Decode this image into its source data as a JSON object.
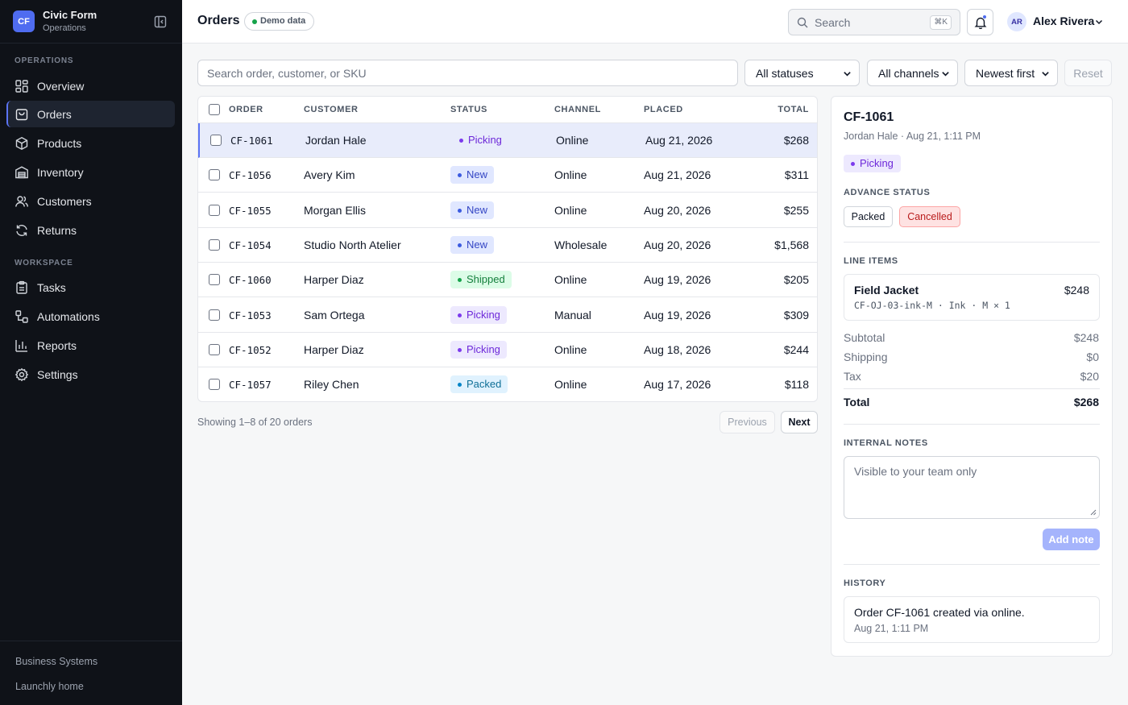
{
  "brand": {
    "logo": "CF",
    "name": "Civic Form",
    "subtitle": "Operations"
  },
  "sidebar": {
    "operations_label": "OPERATIONS",
    "operations": [
      {
        "label": "Overview",
        "icon": "grid-icon"
      },
      {
        "label": "Orders",
        "icon": "shopping-bag-icon",
        "active": true
      },
      {
        "label": "Products",
        "icon": "box-icon"
      },
      {
        "label": "Inventory",
        "icon": "warehouse-icon"
      },
      {
        "label": "Customers",
        "icon": "users-icon"
      },
      {
        "label": "Returns",
        "icon": "refresh-icon"
      }
    ],
    "workspace_label": "WORKSPACE",
    "workspace": [
      {
        "label": "Tasks",
        "icon": "clipboard-icon"
      },
      {
        "label": "Automations",
        "icon": "workflow-icon"
      },
      {
        "label": "Reports",
        "icon": "bar-chart-icon"
      },
      {
        "label": "Settings",
        "icon": "gear-icon"
      }
    ],
    "footer": [
      "Business Systems",
      "Launchly home"
    ]
  },
  "topbar": {
    "title": "Orders",
    "badge": "Demo data",
    "search_placeholder": "Search",
    "search_shortcut": "⌘K",
    "user_initials": "AR",
    "user_name": "Alex Rivera"
  },
  "filters": {
    "search_placeholder": "Search order, customer, or SKU",
    "status": "All statuses",
    "channel": "All channels",
    "sort": "Newest first",
    "reset": "Reset"
  },
  "table": {
    "columns": [
      "ORDER",
      "CUSTOMER",
      "STATUS",
      "CHANNEL",
      "PLACED",
      "TOTAL"
    ],
    "rows": [
      {
        "id": "CF-1061",
        "customer": "Jordan Hale",
        "status": "Picking",
        "channel": "Online",
        "placed": "Aug 21, 2026",
        "total": "$268",
        "selected": true
      },
      {
        "id": "CF-1056",
        "customer": "Avery Kim",
        "status": "New",
        "channel": "Online",
        "placed": "Aug 21, 2026",
        "total": "$311"
      },
      {
        "id": "CF-1055",
        "customer": "Morgan Ellis",
        "status": "New",
        "channel": "Online",
        "placed": "Aug 20, 2026",
        "total": "$255"
      },
      {
        "id": "CF-1054",
        "customer": "Studio North Atelier",
        "status": "New",
        "channel": "Wholesale",
        "placed": "Aug 20, 2026",
        "total": "$1,568"
      },
      {
        "id": "CF-1060",
        "customer": "Harper Diaz",
        "status": "Shipped",
        "channel": "Online",
        "placed": "Aug 19, 2026",
        "total": "$205"
      },
      {
        "id": "CF-1053",
        "customer": "Sam Ortega",
        "status": "Picking",
        "channel": "Manual",
        "placed": "Aug 19, 2026",
        "total": "$309"
      },
      {
        "id": "CF-1052",
        "customer": "Harper Diaz",
        "status": "Picking",
        "channel": "Online",
        "placed": "Aug 18, 2026",
        "total": "$244"
      },
      {
        "id": "CF-1057",
        "customer": "Riley Chen",
        "status": "Packed",
        "channel": "Online",
        "placed": "Aug 17, 2026",
        "total": "$118"
      }
    ],
    "showing": "Showing 1–8 of 20 orders",
    "prev": "Previous",
    "next": "Next"
  },
  "detail": {
    "order_id": "CF-1061",
    "subtitle": "Jordan Hale · Aug 21, 1:11 PM",
    "status": "Picking",
    "advance_label": "ADVANCE STATUS",
    "advance_packed": "Packed",
    "advance_cancelled": "Cancelled",
    "line_items_label": "LINE ITEMS",
    "item_name": "Field Jacket",
    "item_price": "$248",
    "item_meta": "CF-OJ-03-ink-M · Ink · M × 1",
    "subtotal_label": "Subtotal",
    "subtotal": "$248",
    "shipping_label": "Shipping",
    "shipping": "$0",
    "tax_label": "Tax",
    "tax": "$20",
    "total_label": "Total",
    "total": "$268",
    "notes_label": "INTERNAL NOTES",
    "notes_placeholder": "Visible to your team only",
    "add_note": "Add note",
    "history_label": "HISTORY",
    "history_text": "Order CF-1061 created via online.",
    "history_time": "Aug 21, 1:11 PM"
  }
}
